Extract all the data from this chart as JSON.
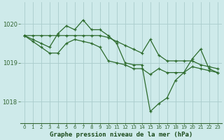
{
  "title": "Graphe pression niveau de la mer (hPa)",
  "background_color": "#ceeaea",
  "grid_color": "#aacccc",
  "line_color": "#2d6b2d",
  "xlim": [
    -0.5,
    23.5
  ],
  "ylim": [
    1017.45,
    1020.55
  ],
  "yticks": [
    1018,
    1019,
    1020
  ],
  "xticks": [
    0,
    1,
    2,
    3,
    4,
    5,
    6,
    7,
    8,
    9,
    10,
    11,
    12,
    13,
    14,
    15,
    16,
    17,
    18,
    19,
    20,
    21,
    22,
    23
  ],
  "series1": [
    1019.7,
    1019.7,
    1019.7,
    1019.7,
    1019.7,
    1019.7,
    1019.7,
    1019.7,
    1019.7,
    1019.7,
    1019.65,
    1019.55,
    1019.45,
    1019.35,
    1019.25,
    1019.6,
    1019.2,
    1019.05,
    1019.05,
    1019.05,
    1019.05,
    1018.95,
    1018.9,
    1018.85
  ],
  "series2": [
    1019.7,
    1019.6,
    1019.5,
    1019.4,
    1019.75,
    1019.95,
    1019.85,
    1020.1,
    1019.85,
    1019.85,
    1019.7,
    1019.5,
    1019.0,
    1018.95,
    1018.95,
    1017.75,
    1017.95,
    1018.1,
    1018.55,
    1018.75,
    1019.1,
    1019.35,
    1018.85,
    1018.75
  ],
  "series3": [
    1019.7,
    1019.55,
    1019.4,
    1019.25,
    1019.25,
    1019.5,
    1019.6,
    1019.55,
    1019.5,
    1019.4,
    1019.05,
    1019.0,
    1018.95,
    1018.85,
    1018.85,
    1018.7,
    1018.85,
    1018.75,
    1018.75,
    1018.75,
    1018.9,
    1018.85,
    1018.8,
    1018.75
  ]
}
